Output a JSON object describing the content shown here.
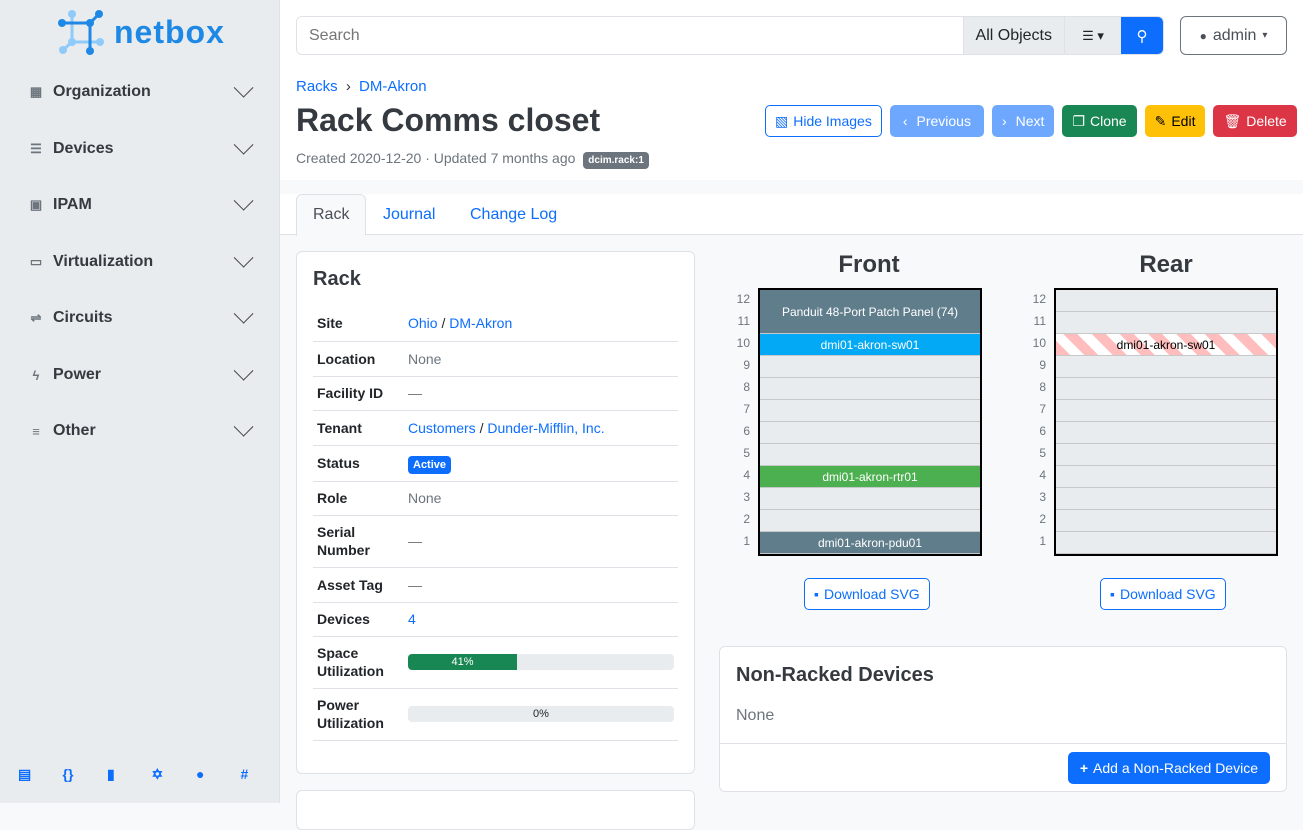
{
  "brand": {
    "name": "netbox"
  },
  "sidebar": {
    "items": [
      {
        "label": "Organization",
        "icon": "building-icon"
      },
      {
        "label": "Devices",
        "icon": "server-icon"
      },
      {
        "label": "IPAM",
        "icon": "ipam-icon"
      },
      {
        "label": "Virtualization",
        "icon": "monitor-icon"
      },
      {
        "label": "Circuits",
        "icon": "circuit-icon"
      },
      {
        "label": "Power",
        "icon": "flash-icon"
      },
      {
        "label": "Other",
        "icon": "notes-icon"
      }
    ],
    "footer": [
      "book-icon",
      "api-icon",
      "bookmark-icon",
      "graphql-icon",
      "github-icon",
      "slack-icon"
    ]
  },
  "search": {
    "placeholder": "Search",
    "scope": "All Objects"
  },
  "user": {
    "name": "admin"
  },
  "breadcrumb": [
    "Racks",
    "DM-Akron"
  ],
  "page": {
    "title": "Rack Comms closet",
    "meta": "Created 2020-12-20 · Updated 7 months ago",
    "id_badge": "dcim.rack:1"
  },
  "actions": {
    "hide_images": "Hide Images",
    "previous": "Previous",
    "next": "Next",
    "clone": "Clone",
    "edit": "Edit",
    "delete": "Delete"
  },
  "tabs": [
    "Rack",
    "Journal",
    "Change Log"
  ],
  "rack_card": {
    "title": "Rack",
    "site": {
      "label": "Site",
      "region": "Ohio",
      "site": "DM-Akron"
    },
    "location": {
      "label": "Location",
      "value": "None"
    },
    "facility": {
      "label": "Facility ID",
      "value": "—"
    },
    "tenant": {
      "label": "Tenant",
      "group": "Customers",
      "tenant": "Dunder-Mifflin, Inc."
    },
    "status": {
      "label": "Status",
      "value": "Active"
    },
    "role": {
      "label": "Role",
      "value": "None"
    },
    "serial": {
      "label": "Serial Number",
      "value": "—"
    },
    "asset": {
      "label": "Asset Tag",
      "value": "—"
    },
    "devices": {
      "label": "Devices",
      "value": "4"
    },
    "space": {
      "label": "Space Utilization",
      "percent": 41,
      "text": "41%"
    },
    "power": {
      "label": "Power Utilization",
      "percent": 0,
      "text": "0%"
    }
  },
  "elevation": {
    "front_title": "Front",
    "rear_title": "Rear",
    "units": [
      "12",
      "11",
      "10",
      "9",
      "8",
      "7",
      "6",
      "5",
      "4",
      "3",
      "2",
      "1"
    ],
    "front_devices": [
      {
        "name": "Panduit 48-Port Patch Panel (74)",
        "top_u": 12,
        "height": 2,
        "color": "#607d8b"
      },
      {
        "name": "dmi01-akron-sw01",
        "top_u": 10,
        "height": 1,
        "color": "#03a9f4"
      },
      {
        "name": "dmi01-akron-rtr01",
        "top_u": 4,
        "height": 1,
        "color": "#4caf50"
      },
      {
        "name": "dmi01-akron-pdu01",
        "top_u": 1,
        "height": 1,
        "color": "#607d8b"
      }
    ],
    "rear_devices": [
      {
        "name": "dmi01-akron-sw01",
        "top_u": 10,
        "height": 1
      }
    ],
    "download": "Download SVG"
  },
  "nonracked": {
    "title": "Non-Racked Devices",
    "value": "None",
    "add": "Add a Non-Racked Device"
  }
}
